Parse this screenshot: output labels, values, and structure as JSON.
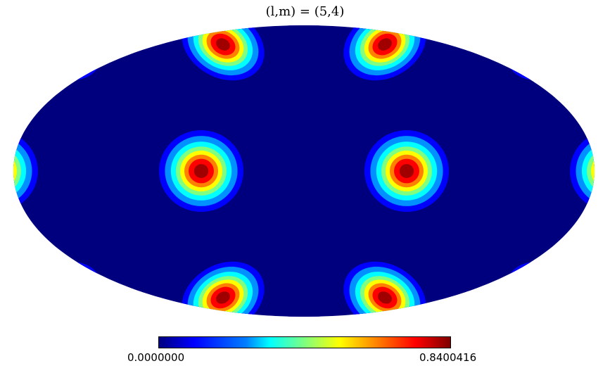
{
  "chart_data": {
    "type": "heatmap",
    "projection": "mollweide",
    "title": "(l,m) = (5,4)",
    "function": "|Y_l^m(theta, phi)|",
    "l": 5,
    "m": 4,
    "colormap": "jet",
    "colorbar": {
      "min_label": "0.0000000",
      "max_label": "0.8400416",
      "min": 0.0,
      "max": 0.8400416
    },
    "grid": false
  }
}
